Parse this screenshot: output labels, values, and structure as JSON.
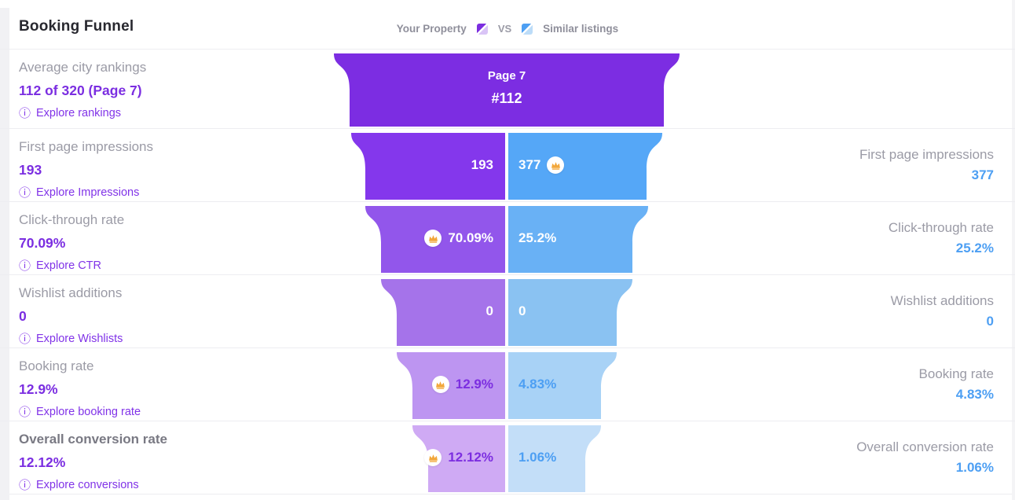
{
  "page": {
    "title": "Booking Funnel"
  },
  "legend": {
    "your_property": "Your Property",
    "vs": "VS",
    "similar_listings": "Similar listings"
  },
  "colors": {
    "accent_purple": "#7b2ee1",
    "accent_blue": "#4d9ff3",
    "purple_value_text_light_rows": "#7c2ee0",
    "crown": "#f2a73b",
    "purple_shades": [
      "#7c2de2",
      "#8437ec",
      "#9256eb",
      "#a573ea",
      "#bd95f1",
      "#cfaaf4"
    ],
    "blue_shades": [
      null,
      "#55a7f7",
      "#69b1f5",
      "#8ac2f2",
      "#a8d2f6",
      "#c3def8"
    ]
  },
  "chart_data": {
    "type": "funnel",
    "title": "Booking Funnel",
    "series": [
      "Your Property",
      "Similar listings"
    ],
    "legend_position": "top-center",
    "stages": [
      {
        "label": "Average city rankings",
        "your_property": "112 of 320 (Page 7)",
        "similar_listings": null,
        "center_label": [
          "Page 7",
          "#112"
        ],
        "winner": null,
        "explore": "Explore rankings"
      },
      {
        "label": "First page impressions",
        "your_property": "193",
        "similar_listings": "377",
        "winner": "similar_listings",
        "explore": "Explore Impressions"
      },
      {
        "label": "Click-through rate",
        "your_property": "70.09%",
        "similar_listings": "25.2%",
        "winner": "your_property",
        "explore": "Explore CTR"
      },
      {
        "label": "Wishlist additions",
        "your_property": "0",
        "similar_listings": "0",
        "winner": null,
        "explore": "Explore Wishlists"
      },
      {
        "label": "Booking rate",
        "your_property": "12.9%",
        "similar_listings": "4.83%",
        "winner": "your_property",
        "explore": "Explore booking rate"
      },
      {
        "label": "Overall conversion rate",
        "your_property": "12.12%",
        "similar_listings": "1.06%",
        "winner": "your_property",
        "explore": "Explore conversions"
      }
    ]
  }
}
